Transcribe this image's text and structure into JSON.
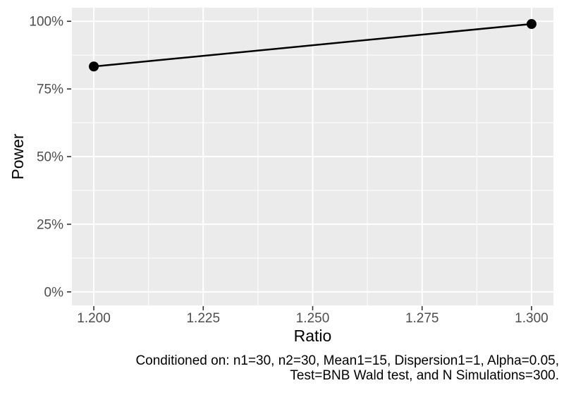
{
  "chart_data": {
    "type": "line",
    "title": "",
    "xlabel": "Ratio",
    "ylabel": "Power",
    "caption_line1": "Conditioned on: n1=30, n2=30, Mean1=15, Dispersion1=1, Alpha=0.05,",
    "caption_line2": "Test=BNB Wald test, and N Simulations=300.",
    "series": [
      {
        "name": "Power",
        "x": [
          1.2,
          1.3
        ],
        "y": [
          0.833,
          0.99
        ]
      }
    ],
    "x_ticks": {
      "values": [
        1.2,
        1.225,
        1.25,
        1.275,
        1.3
      ],
      "labels": [
        "1.200",
        "1.225",
        "1.250",
        "1.275",
        "1.300"
      ]
    },
    "y_ticks": {
      "values": [
        0,
        0.25,
        0.5,
        0.75,
        1.0
      ],
      "labels": [
        "0%",
        "25%",
        "50%",
        "75%",
        "100%"
      ]
    },
    "x_minor": [
      1.2125,
      1.2375,
      1.2625,
      1.2875
    ],
    "y_minor": [
      0.125,
      0.375,
      0.625,
      0.875
    ],
    "xlim": [
      1.195,
      1.305
    ],
    "ylim": [
      -0.05,
      1.05
    ],
    "grid": true,
    "legend": "none"
  },
  "style": {
    "panel_bg": "#EBEBEB",
    "grid_color": "#FFFFFF",
    "line_color": "#000000",
    "point_color": "#000000",
    "axis_text_color": "#4D4D4D",
    "axis_title_color": "#000000",
    "tick_color": "#333333",
    "background": "#FFFFFF"
  }
}
